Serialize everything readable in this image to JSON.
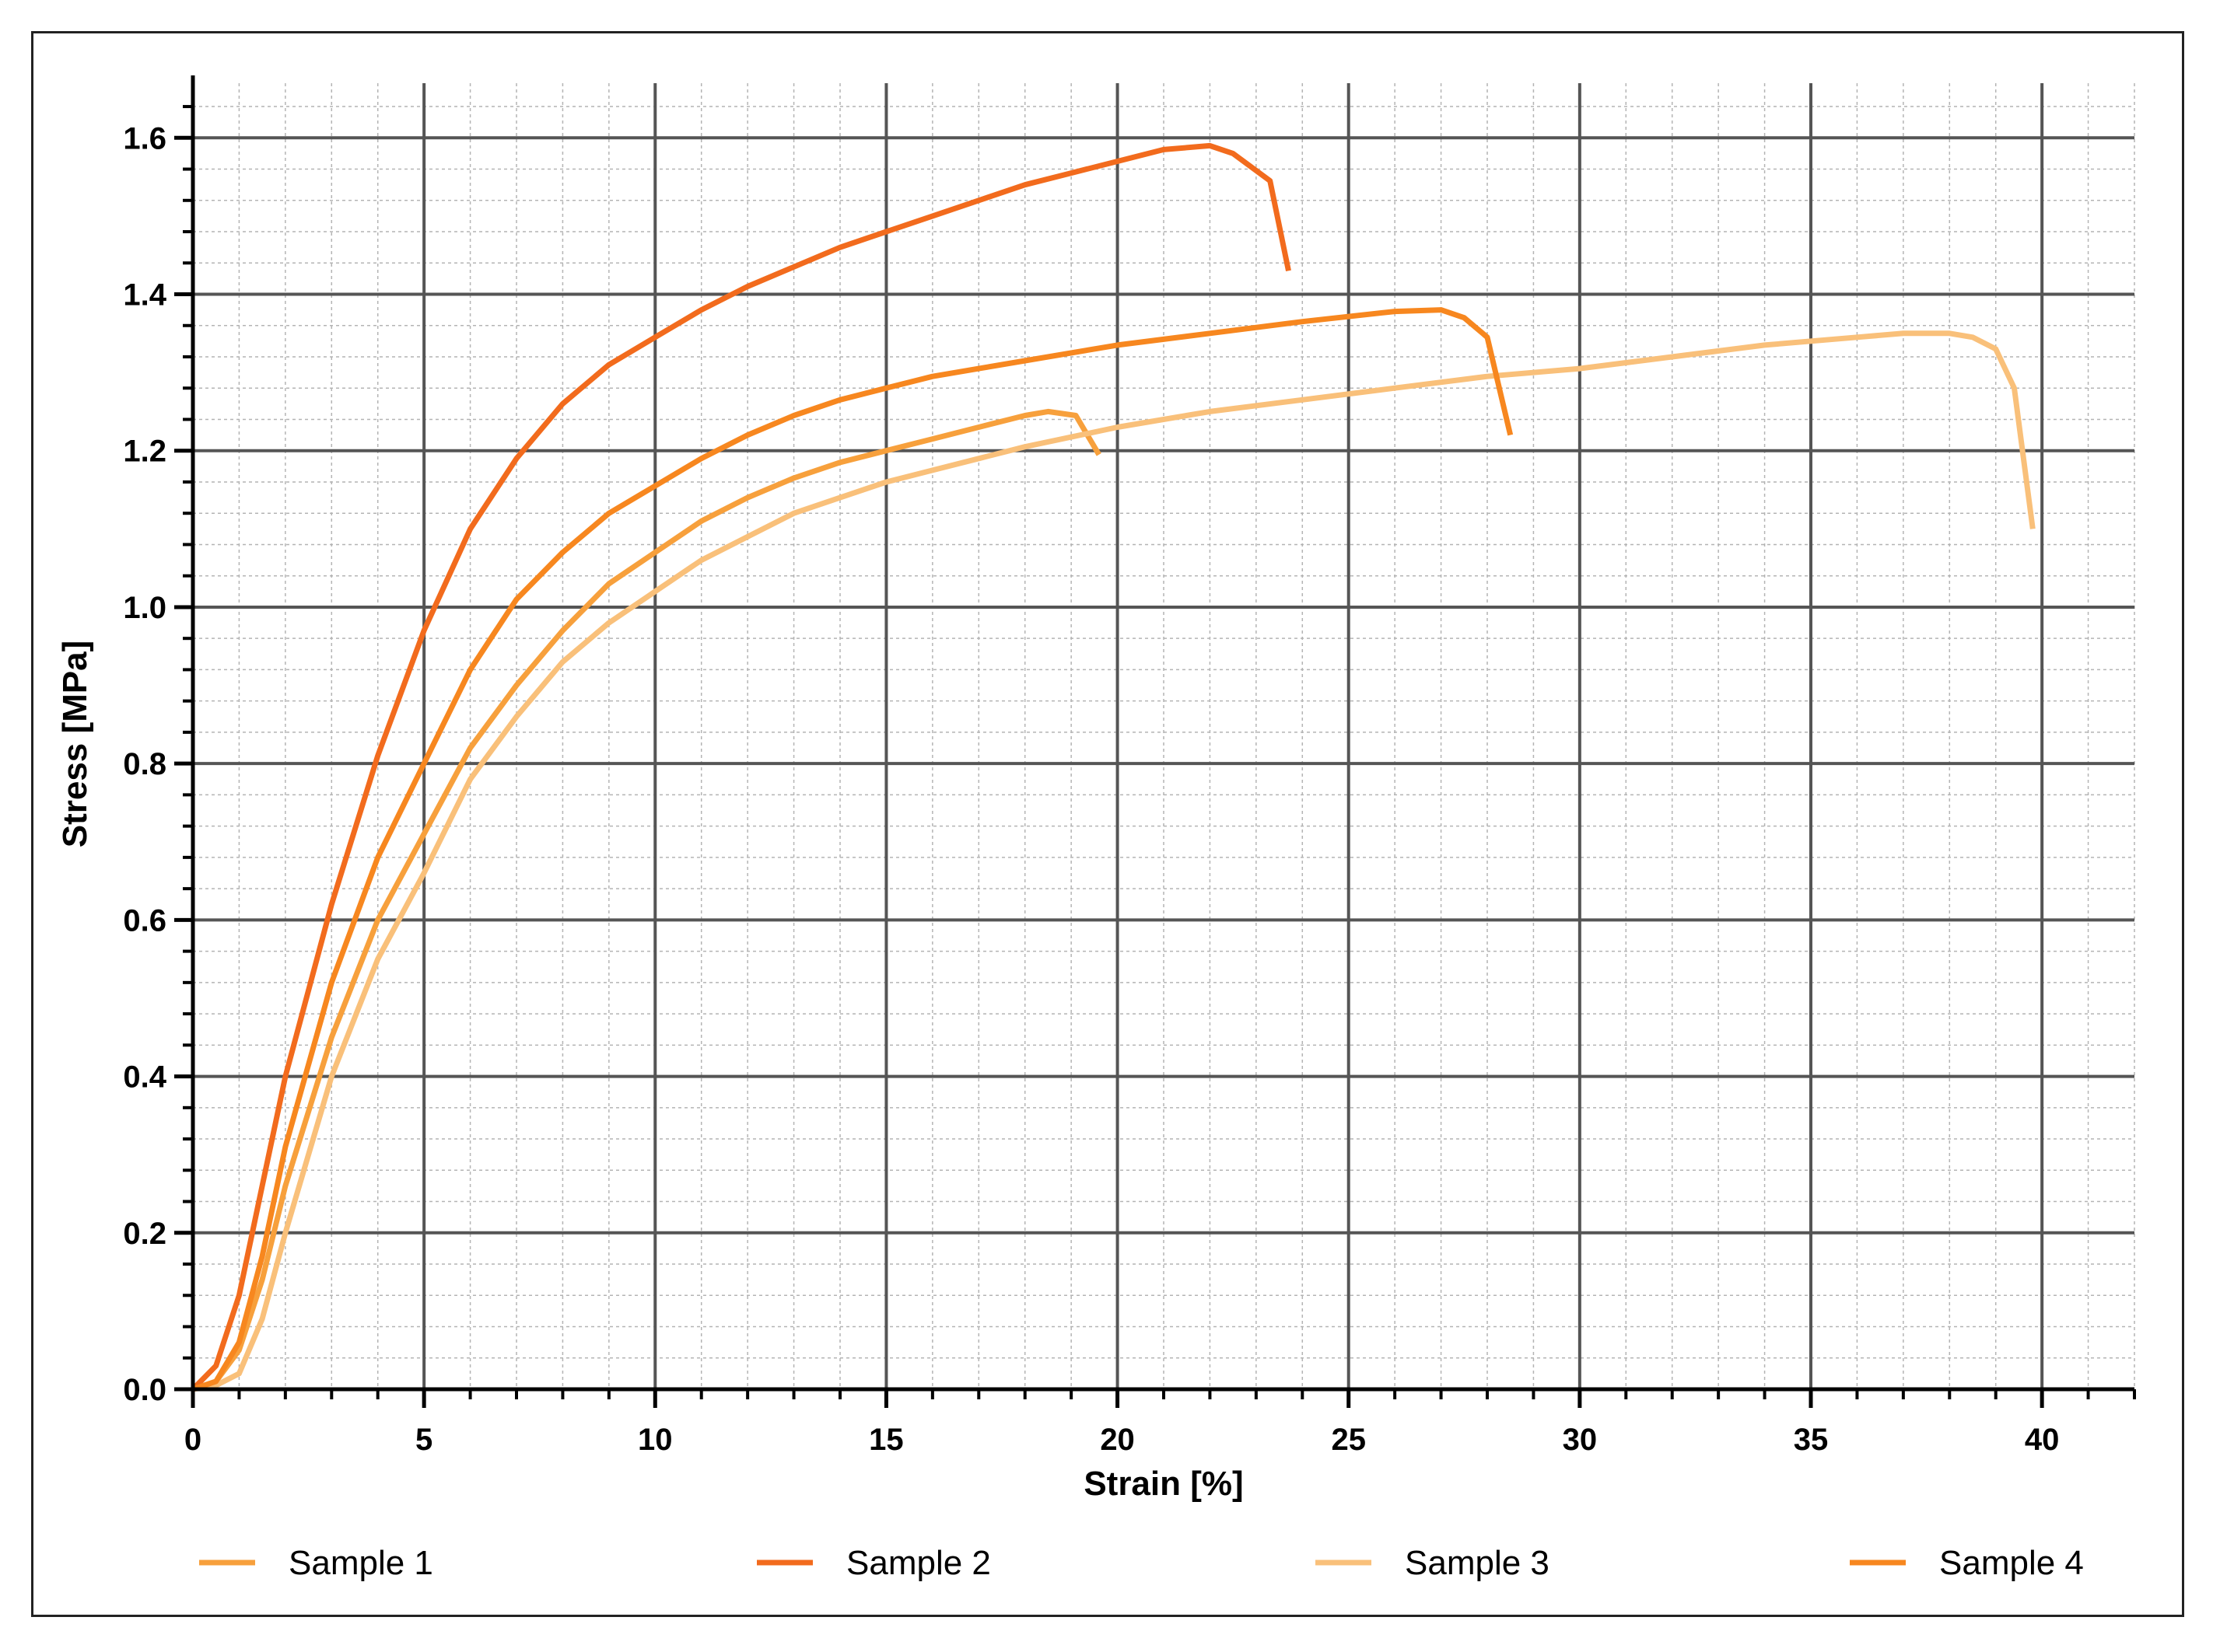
{
  "chart_data": {
    "type": "line",
    "xlabel": "Strain [%]",
    "ylabel": "Stress [MPa]",
    "xlim": [
      0,
      42
    ],
    "ylim": [
      0,
      1.65
    ],
    "xticks": [
      "0",
      "5",
      "10",
      "15",
      "20",
      "25",
      "30",
      "35",
      "40"
    ],
    "yticks": [
      "0.0",
      "0.2",
      "0.4",
      "0.6",
      "0.8",
      "1.0",
      "1.2",
      "1.4",
      "1.6"
    ],
    "grid": true,
    "legend_position": "bottom",
    "series": [
      {
        "name": "Sample 1",
        "color": "#F7A03C",
        "points": [
          [
            0,
            0
          ],
          [
            0.5,
            0.01
          ],
          [
            1,
            0.05
          ],
          [
            1.5,
            0.14
          ],
          [
            2,
            0.26
          ],
          [
            3,
            0.45
          ],
          [
            4,
            0.6
          ],
          [
            5,
            0.71
          ],
          [
            6,
            0.82
          ],
          [
            7,
            0.9
          ],
          [
            8,
            0.97
          ],
          [
            9,
            1.03
          ],
          [
            10,
            1.07
          ],
          [
            11,
            1.11
          ],
          [
            12,
            1.14
          ],
          [
            13,
            1.165
          ],
          [
            14,
            1.185
          ],
          [
            15,
            1.2
          ],
          [
            16,
            1.215
          ],
          [
            17,
            1.23
          ],
          [
            18,
            1.245
          ],
          [
            18.5,
            1.25
          ],
          [
            19.1,
            1.245
          ],
          [
            19.6,
            1.195
          ]
        ]
      },
      {
        "name": "Sample 2",
        "color": "#F26B1D",
        "points": [
          [
            0,
            0
          ],
          [
            0.5,
            0.03
          ],
          [
            1,
            0.12
          ],
          [
            1.5,
            0.26
          ],
          [
            2,
            0.4
          ],
          [
            3,
            0.62
          ],
          [
            4,
            0.81
          ],
          [
            5,
            0.97
          ],
          [
            6,
            1.1
          ],
          [
            7,
            1.19
          ],
          [
            8,
            1.26
          ],
          [
            9,
            1.31
          ],
          [
            10,
            1.345
          ],
          [
            11,
            1.38
          ],
          [
            12,
            1.41
          ],
          [
            13,
            1.435
          ],
          [
            14,
            1.46
          ],
          [
            15,
            1.48
          ],
          [
            16,
            1.5
          ],
          [
            17,
            1.52
          ],
          [
            18,
            1.54
          ],
          [
            19,
            1.555
          ],
          [
            20,
            1.57
          ],
          [
            21,
            1.585
          ],
          [
            22,
            1.59
          ],
          [
            22.5,
            1.58
          ],
          [
            23.3,
            1.545
          ],
          [
            23.7,
            1.43
          ]
        ]
      },
      {
        "name": "Sample 3",
        "color": "#F9C07A",
        "points": [
          [
            0,
            0
          ],
          [
            0.5,
            0.005
          ],
          [
            1,
            0.02
          ],
          [
            1.5,
            0.09
          ],
          [
            2,
            0.2
          ],
          [
            3,
            0.4
          ],
          [
            4,
            0.55
          ],
          [
            5,
            0.66
          ],
          [
            6,
            0.78
          ],
          [
            7,
            0.86
          ],
          [
            8,
            0.93
          ],
          [
            9,
            0.98
          ],
          [
            10,
            1.02
          ],
          [
            11,
            1.06
          ],
          [
            12,
            1.09
          ],
          [
            13,
            1.12
          ],
          [
            14,
            1.14
          ],
          [
            15,
            1.16
          ],
          [
            16,
            1.175
          ],
          [
            17,
            1.19
          ],
          [
            18,
            1.205
          ],
          [
            20,
            1.23
          ],
          [
            22,
            1.25
          ],
          [
            24,
            1.265
          ],
          [
            26,
            1.28
          ],
          [
            28,
            1.295
          ],
          [
            30,
            1.305
          ],
          [
            32,
            1.32
          ],
          [
            34,
            1.335
          ],
          [
            36,
            1.345
          ],
          [
            37,
            1.35
          ],
          [
            38,
            1.35
          ],
          [
            38.5,
            1.345
          ],
          [
            39,
            1.33
          ],
          [
            39.4,
            1.28
          ],
          [
            39.8,
            1.1
          ]
        ]
      },
      {
        "name": "Sample 4",
        "color": "#F7871F",
        "points": [
          [
            0,
            0
          ],
          [
            0.5,
            0.01
          ],
          [
            1,
            0.06
          ],
          [
            1.5,
            0.17
          ],
          [
            2,
            0.31
          ],
          [
            3,
            0.52
          ],
          [
            4,
            0.68
          ],
          [
            5,
            0.8
          ],
          [
            6,
            0.92
          ],
          [
            7,
            1.01
          ],
          [
            8,
            1.07
          ],
          [
            9,
            1.12
          ],
          [
            10,
            1.155
          ],
          [
            11,
            1.19
          ],
          [
            12,
            1.22
          ],
          [
            13,
            1.245
          ],
          [
            14,
            1.265
          ],
          [
            15,
            1.28
          ],
          [
            16,
            1.295
          ],
          [
            17,
            1.305
          ],
          [
            18,
            1.315
          ],
          [
            20,
            1.335
          ],
          [
            22,
            1.35
          ],
          [
            24,
            1.365
          ],
          [
            26,
            1.378
          ],
          [
            27,
            1.38
          ],
          [
            27.5,
            1.37
          ],
          [
            28,
            1.345
          ],
          [
            28.5,
            1.22
          ]
        ]
      }
    ]
  }
}
